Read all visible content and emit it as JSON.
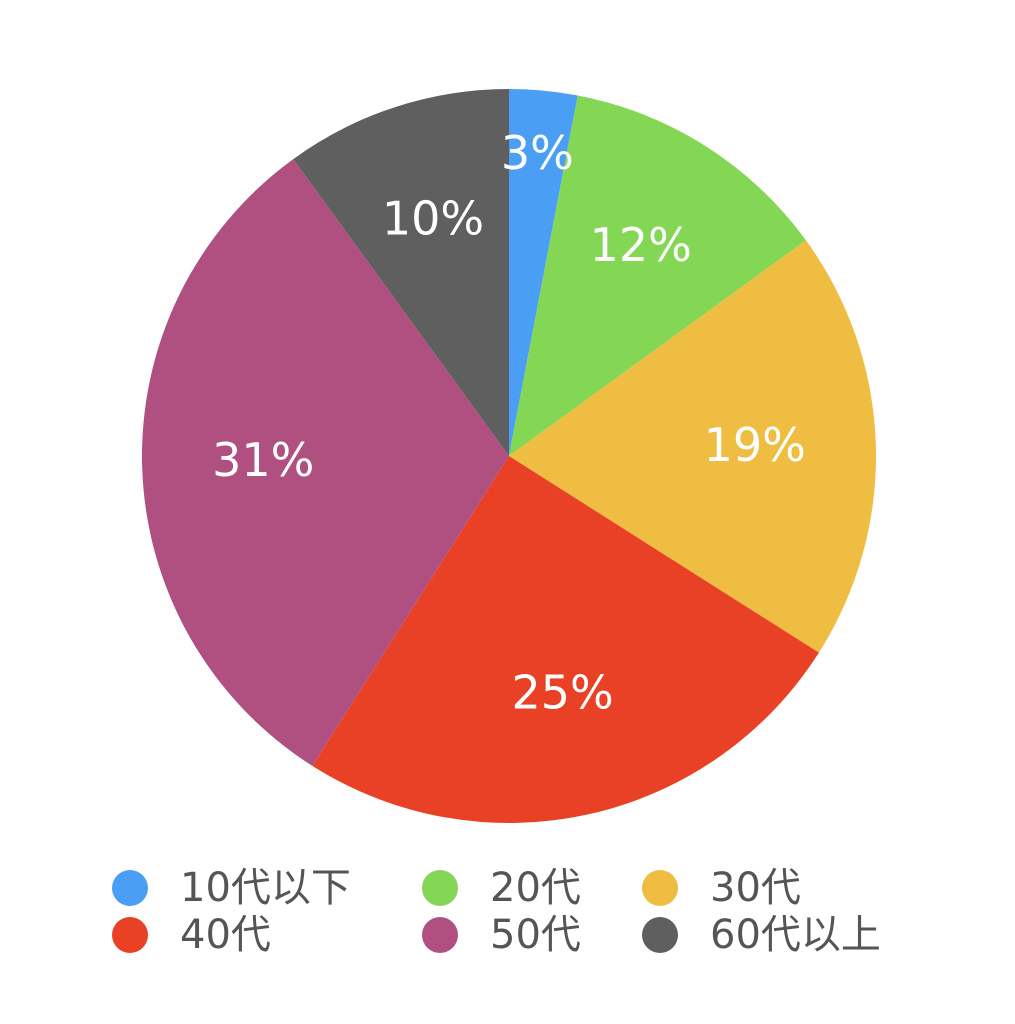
{
  "chart_data": {
    "type": "pie",
    "categories": [
      "10代以下",
      "20代",
      "30代",
      "40代",
      "50代",
      "60代以上"
    ],
    "values": [
      3,
      12,
      19,
      25,
      31,
      10
    ],
    "value_labels": [
      "3%",
      "12%",
      "19%",
      "25%",
      "31%",
      "10%"
    ],
    "colors": [
      "#4a9ff5",
      "#84d655",
      "#eebd42",
      "#e84126",
      "#b05081",
      "#5f5f5f"
    ],
    "legend": "bottom"
  }
}
